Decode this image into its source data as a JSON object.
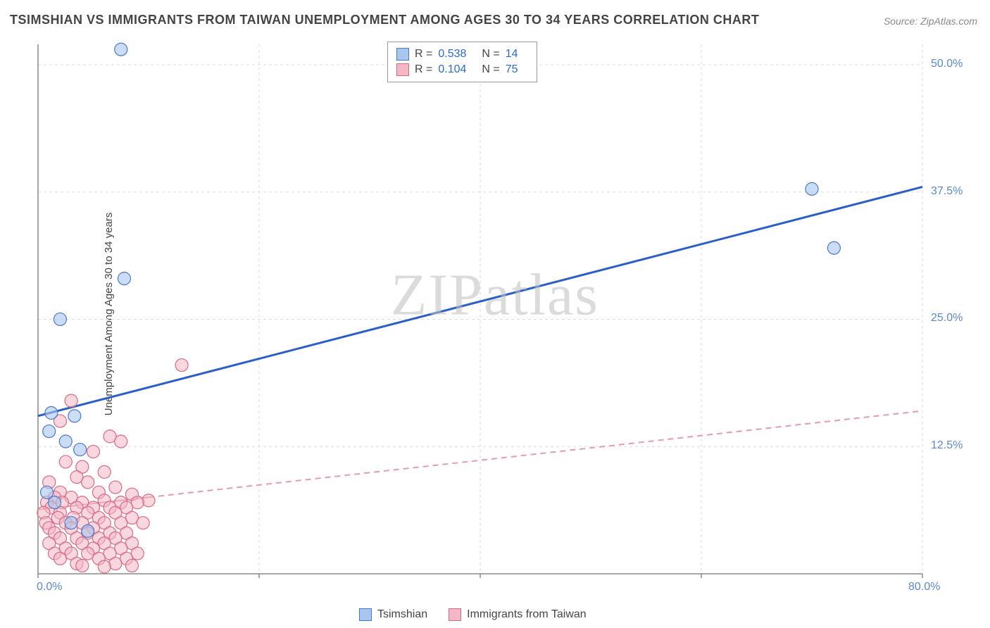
{
  "title": "TSIMSHIAN VS IMMIGRANTS FROM TAIWAN UNEMPLOYMENT AMONG AGES 30 TO 34 YEARS CORRELATION CHART",
  "source_label": "Source:",
  "source_value": "ZipAtlas.com",
  "ylabel": "Unemployment Among Ages 30 to 34 years",
  "watermark": "ZIPatlas",
  "chart": {
    "type": "scatter-with-regression",
    "background_color": "#ffffff",
    "grid_color": "#dddddd",
    "grid_dash": "4 4",
    "axis_color": "#888888",
    "tick_label_color": "#5a87d6",
    "xlim": [
      0,
      80
    ],
    "ylim": [
      0,
      52
    ],
    "x_ticks": [
      0,
      20,
      40,
      60,
      80
    ],
    "x_tick_labels": [
      "0.0%",
      "",
      "",
      "",
      "80.0%"
    ],
    "y_ticks": [
      12.5,
      25.0,
      37.5,
      50.0
    ],
    "y_tick_labels": [
      "12.5%",
      "25.0%",
      "37.5%",
      "50.0%"
    ],
    "legend_bottom": [
      {
        "label": "Tsimshian",
        "fill": "#a9c6ee",
        "stroke": "#4a78c8"
      },
      {
        "label": "Immigrants from Taiwan",
        "fill": "#f4b7c4",
        "stroke": "#d66a85"
      }
    ],
    "stats": [
      {
        "fill": "#a9c6ee",
        "stroke": "#4a78c8",
        "r_label": "R =",
        "r_value": "0.538",
        "n_label": "N =",
        "n_value": "14"
      },
      {
        "fill": "#f4b7c4",
        "stroke": "#d66a85",
        "r_label": "R =",
        "r_value": "0.104",
        "n_label": "N =",
        "n_value": "75"
      }
    ],
    "series": [
      {
        "name": "Tsimshian",
        "marker_radius": 9,
        "marker_fill": "#a9c6ee",
        "marker_stroke": "#4a78c8",
        "marker_opacity": 0.6,
        "regression": {
          "x1": 0,
          "y1": 15.5,
          "x2": 80,
          "y2": 38.0,
          "stroke": "#2a5fc9",
          "width": 3,
          "dash": "none"
        },
        "points": [
          [
            7.5,
            51.5
          ],
          [
            7.8,
            29.0
          ],
          [
            2.0,
            25.0
          ],
          [
            1.2,
            15.8
          ],
          [
            3.3,
            15.5
          ],
          [
            1.0,
            14.0
          ],
          [
            2.5,
            13.0
          ],
          [
            0.8,
            8.0
          ],
          [
            1.5,
            7.0
          ],
          [
            3.0,
            5.0
          ],
          [
            4.5,
            4.2
          ],
          [
            70.0,
            37.8
          ],
          [
            72.0,
            32.0
          ],
          [
            3.8,
            12.2
          ]
        ]
      },
      {
        "name": "Immigrants from Taiwan",
        "marker_radius": 9,
        "marker_fill": "#f4b7c4",
        "marker_stroke": "#d66a85",
        "marker_opacity": 0.55,
        "regression": {
          "x1": 0,
          "y1": 6.3,
          "x2": 80,
          "y2": 16.0,
          "stroke": "#e89aab",
          "width": 2,
          "dash": "8 6"
        },
        "regression_solid_until_x": 10,
        "points": [
          [
            13.0,
            20.5
          ],
          [
            3.0,
            17.0
          ],
          [
            2.0,
            15.0
          ],
          [
            6.5,
            13.5
          ],
          [
            7.5,
            13.0
          ],
          [
            5.0,
            12.0
          ],
          [
            2.5,
            11.0
          ],
          [
            4.0,
            10.5
          ],
          [
            6.0,
            10.0
          ],
          [
            3.5,
            9.5
          ],
          [
            1.0,
            9.0
          ],
          [
            4.5,
            9.0
          ],
          [
            7.0,
            8.5
          ],
          [
            2.0,
            8.0
          ],
          [
            5.5,
            8.0
          ],
          [
            8.5,
            7.8
          ],
          [
            1.5,
            7.5
          ],
          [
            3.0,
            7.5
          ],
          [
            6.0,
            7.2
          ],
          [
            10.0,
            7.2
          ],
          [
            0.8,
            7.0
          ],
          [
            2.2,
            7.0
          ],
          [
            4.0,
            7.0
          ],
          [
            7.5,
            7.0
          ],
          [
            9.0,
            7.0
          ],
          [
            1.2,
            6.5
          ],
          [
            3.5,
            6.5
          ],
          [
            5.0,
            6.5
          ],
          [
            6.5,
            6.5
          ],
          [
            8.0,
            6.5
          ],
          [
            0.5,
            6.0
          ],
          [
            2.0,
            6.0
          ],
          [
            4.5,
            6.0
          ],
          [
            7.0,
            6.0
          ],
          [
            1.8,
            5.5
          ],
          [
            3.2,
            5.5
          ],
          [
            5.5,
            5.5
          ],
          [
            8.5,
            5.5
          ],
          [
            0.7,
            5.0
          ],
          [
            2.5,
            5.0
          ],
          [
            4.0,
            5.0
          ],
          [
            6.0,
            5.0
          ],
          [
            7.5,
            5.0
          ],
          [
            9.5,
            5.0
          ],
          [
            1.0,
            4.5
          ],
          [
            3.0,
            4.5
          ],
          [
            5.0,
            4.5
          ],
          [
            1.5,
            4.0
          ],
          [
            4.5,
            4.0
          ],
          [
            6.5,
            4.0
          ],
          [
            8.0,
            4.0
          ],
          [
            2.0,
            3.5
          ],
          [
            3.5,
            3.5
          ],
          [
            5.5,
            3.5
          ],
          [
            7.0,
            3.5
          ],
          [
            1.0,
            3.0
          ],
          [
            4.0,
            3.0
          ],
          [
            6.0,
            3.0
          ],
          [
            8.5,
            3.0
          ],
          [
            2.5,
            2.5
          ],
          [
            5.0,
            2.5
          ],
          [
            7.5,
            2.5
          ],
          [
            1.5,
            2.0
          ],
          [
            3.0,
            2.0
          ],
          [
            4.5,
            2.0
          ],
          [
            6.5,
            2.0
          ],
          [
            9.0,
            2.0
          ],
          [
            2.0,
            1.5
          ],
          [
            5.5,
            1.5
          ],
          [
            8.0,
            1.5
          ],
          [
            3.5,
            1.0
          ],
          [
            7.0,
            1.0
          ],
          [
            4.0,
            0.8
          ],
          [
            6.0,
            0.7
          ],
          [
            8.5,
            0.8
          ]
        ]
      }
    ]
  }
}
